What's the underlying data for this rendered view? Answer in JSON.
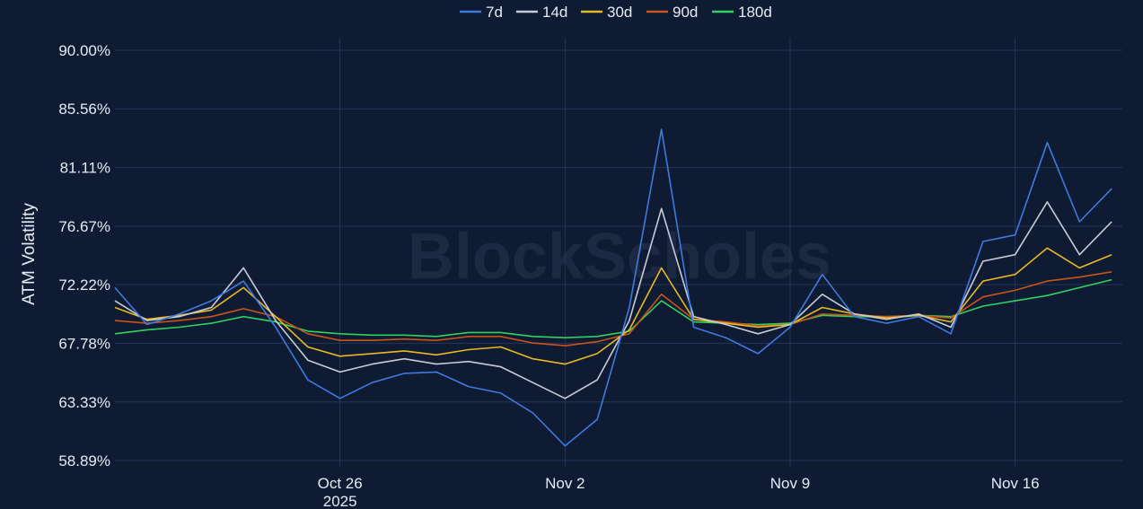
{
  "watermark": "BlockScholes",
  "chart_data": {
    "type": "line",
    "title": "",
    "xlabel": "",
    "ylabel": "ATM Volatility",
    "y_unit": "%",
    "ylim": [
      58.89,
      90.0
    ],
    "y_ticks": [
      "90.00%",
      "85.56%",
      "81.11%",
      "76.67%",
      "72.22%",
      "67.78%",
      "63.33%",
      "58.89%"
    ],
    "y_tick_values": [
      90.0,
      85.56,
      81.11,
      76.67,
      72.22,
      67.78,
      63.33,
      58.89
    ],
    "xlim": [
      "2025-10-19",
      "2025-11-19T08:00"
    ],
    "x_ticks": [
      {
        "date": "2025-10-26",
        "label": "Oct 26",
        "sublabel": "2025"
      },
      {
        "date": "2025-11-02",
        "label": "Nov 2",
        "sublabel": ""
      },
      {
        "date": "2025-11-09",
        "label": "Nov 9",
        "sublabel": ""
      },
      {
        "date": "2025-11-16",
        "label": "Nov 16",
        "sublabel": ""
      }
    ],
    "grid": true,
    "legend_position": "top-center",
    "x": [
      "2025-10-19",
      "2025-10-20",
      "2025-10-21",
      "2025-10-22",
      "2025-10-23",
      "2025-10-24",
      "2025-10-25",
      "2025-10-26",
      "2025-10-27",
      "2025-10-28",
      "2025-10-29",
      "2025-10-30",
      "2025-10-31",
      "2025-11-01",
      "2025-11-02",
      "2025-11-03",
      "2025-11-04",
      "2025-11-05",
      "2025-11-06",
      "2025-11-07",
      "2025-11-08",
      "2025-11-09",
      "2025-11-10",
      "2025-11-11",
      "2025-11-12",
      "2025-11-13",
      "2025-11-14",
      "2025-11-15",
      "2025-11-16",
      "2025-11-17",
      "2025-11-18",
      "2025-11-19"
    ],
    "series": [
      {
        "name": "7d",
        "color": "#3d7be0",
        "values": [
          72.0,
          69.2,
          70.0,
          71.0,
          72.5,
          69.0,
          65.0,
          63.6,
          64.8,
          65.5,
          65.6,
          64.5,
          64.0,
          62.5,
          60.0,
          62.0,
          70.5,
          84.0,
          69.0,
          68.2,
          67.0,
          69.0,
          73.0,
          69.8,
          69.3,
          69.8,
          68.5,
          75.5,
          76.0,
          83.0,
          77.0,
          79.5
        ]
      },
      {
        "name": "14d",
        "color": "#c8ccd6",
        "values": [
          71.0,
          69.5,
          69.8,
          70.5,
          73.5,
          69.5,
          66.5,
          65.6,
          66.2,
          66.6,
          66.2,
          66.4,
          66.0,
          64.8,
          63.6,
          65.0,
          69.5,
          78.0,
          69.8,
          69.2,
          68.5,
          69.2,
          71.5,
          70.0,
          69.6,
          70.0,
          69.0,
          74.0,
          74.5,
          78.5,
          74.5,
          77.0
        ]
      },
      {
        "name": "30d",
        "color": "#e8b923",
        "values": [
          70.5,
          69.6,
          69.9,
          70.3,
          72.0,
          69.8,
          67.5,
          66.8,
          67.0,
          67.2,
          66.9,
          67.3,
          67.5,
          66.6,
          66.2,
          67.0,
          68.8,
          73.5,
          69.6,
          69.3,
          69.0,
          69.2,
          70.5,
          70.0,
          69.7,
          69.9,
          69.4,
          72.5,
          73.0,
          75.0,
          73.5,
          74.5
        ]
      },
      {
        "name": "90d",
        "color": "#c8541a",
        "values": [
          69.5,
          69.3,
          69.5,
          69.8,
          70.4,
          69.8,
          68.5,
          68.0,
          68.0,
          68.1,
          68.0,
          68.3,
          68.3,
          67.8,
          67.6,
          67.9,
          68.5,
          71.5,
          69.6,
          69.4,
          69.1,
          69.2,
          70.0,
          69.9,
          69.8,
          69.9,
          69.7,
          71.3,
          71.8,
          72.5,
          72.8,
          73.2
        ]
      },
      {
        "name": "180d",
        "color": "#2fd35c",
        "values": [
          68.5,
          68.8,
          69.0,
          69.3,
          69.8,
          69.4,
          68.7,
          68.5,
          68.4,
          68.4,
          68.3,
          68.6,
          68.6,
          68.3,
          68.2,
          68.3,
          68.7,
          71.0,
          69.4,
          69.3,
          69.2,
          69.3,
          69.9,
          69.8,
          69.8,
          69.9,
          69.8,
          70.6,
          71.0,
          71.4,
          72.0,
          72.6
        ]
      }
    ]
  }
}
